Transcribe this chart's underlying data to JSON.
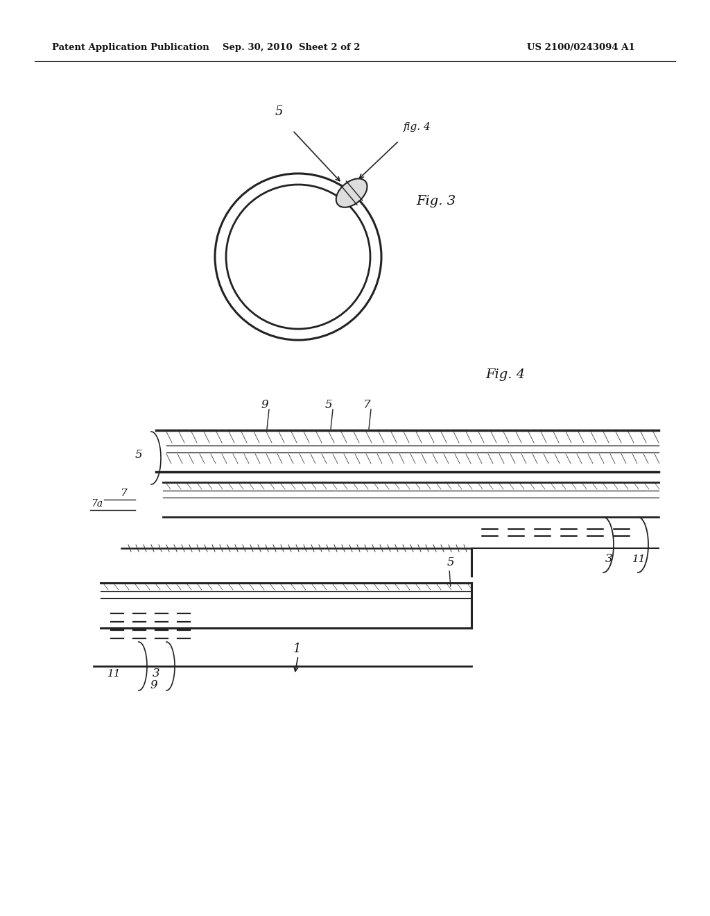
{
  "bg_color": "#ffffff",
  "header_left": "Patent Application Publication",
  "header_mid": "Sep. 30, 2010  Sheet 2 of 2",
  "header_right": "US 2100/0243094 A1",
  "fig3_label": "Fig. 3",
  "fig4_label": "Fig. 4",
  "line_color": "#222222",
  "text_color": "#111111"
}
